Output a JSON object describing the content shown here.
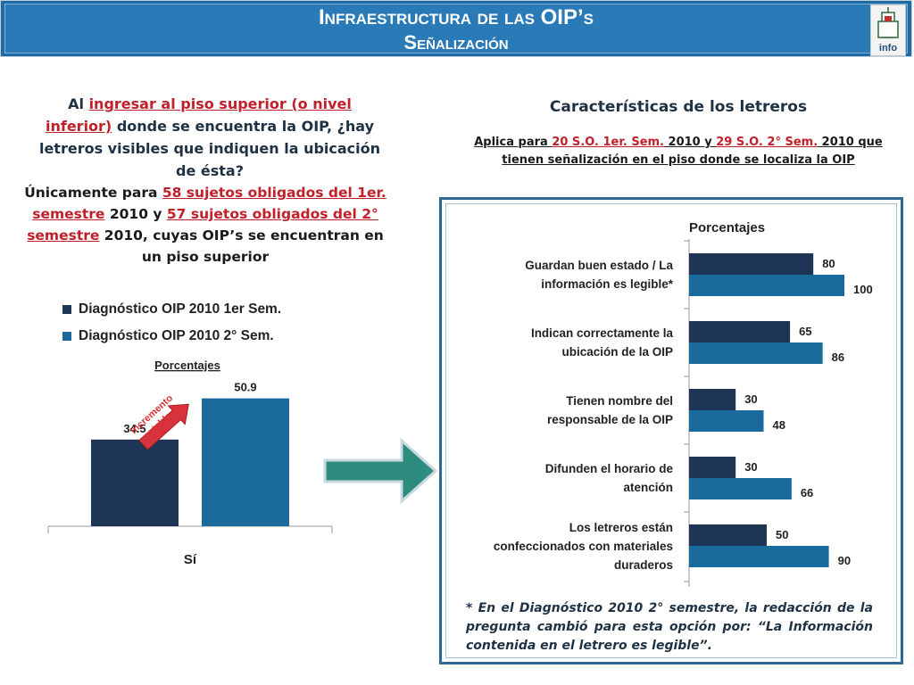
{
  "header": {
    "title_line1": "Infraestructura de las OIP’s",
    "title_line2": "Señalización",
    "logo_text": "info"
  },
  "left": {
    "question": {
      "prefix": "Al ",
      "highlight": "ingresar al piso superior (o nivel inferior)",
      "rest": " donde se encuentra la OIP, ¿hay letreros visibles que indiquen la ubicación de ésta?"
    },
    "note": {
      "p1": "Únicamente para ",
      "h1": "58 sujetos obligados del 1er. semestre",
      "p2": " 2010 y ",
      "h2": "57 sujetos obligados del 2° semestre",
      "p3": " 2010, cuyas OIP’s se encuentran en un piso superior"
    },
    "legend": [
      {
        "label": "Diagnóstico OIP 2010 1er Sem.",
        "color": "#1f3556"
      },
      {
        "label": "Diagnóstico OIP 2010 2° Sem.",
        "color": "#1a6b9c"
      }
    ],
    "increment_label": "Incremento notable"
  },
  "right": {
    "title": "Características de los letreros",
    "subtitle": {
      "p1": "Aplica para ",
      "h1": "20 S.O. 1er. Sem.",
      "p2": " 2010 y ",
      "h2": "29 S.O. 2° Sem.",
      "p3": " 2010 que tienen señalización en el piso donde se localiza la OIP"
    },
    "footnote": "* En el Diagnóstico 2010 2° semestre, la redacción de la pregunta cambió para esta opción por: “La Información contenida en el letrero es legible”."
  },
  "chart_data": [
    {
      "type": "bar",
      "title": "Porcentajes",
      "categories": [
        "Sí"
      ],
      "series": [
        {
          "name": "Diagnóstico OIP 2010 1er Sem.",
          "values": [
            34.5
          ],
          "color": "#1f3556"
        },
        {
          "name": "Diagnóstico OIP 2010 2° Sem.",
          "values": [
            50.9
          ],
          "color": "#1a6b9c"
        }
      ],
      "ylim": [
        0,
        60
      ]
    },
    {
      "type": "bar",
      "orientation": "horizontal",
      "title": "Porcentajes",
      "categories": [
        "Guardan buen estado / La información es legible*",
        "Indican correctamente la ubicación de la OIP",
        "Tienen nombre del responsable de la OIP",
        "Difunden el horario de atención",
        "Los letreros están confeccionados con materiales duraderos"
      ],
      "series": [
        {
          "name": "Diagnóstico OIP 2010 1er Sem.",
          "values": [
            80,
            65,
            30,
            30,
            50
          ],
          "color": "#1f3556"
        },
        {
          "name": "Diagnóstico OIP 2010 2° Sem.",
          "values": [
            100,
            86,
            48,
            66,
            90
          ],
          "color": "#1a6b9c"
        }
      ],
      "xlim": [
        0,
        100
      ]
    }
  ]
}
